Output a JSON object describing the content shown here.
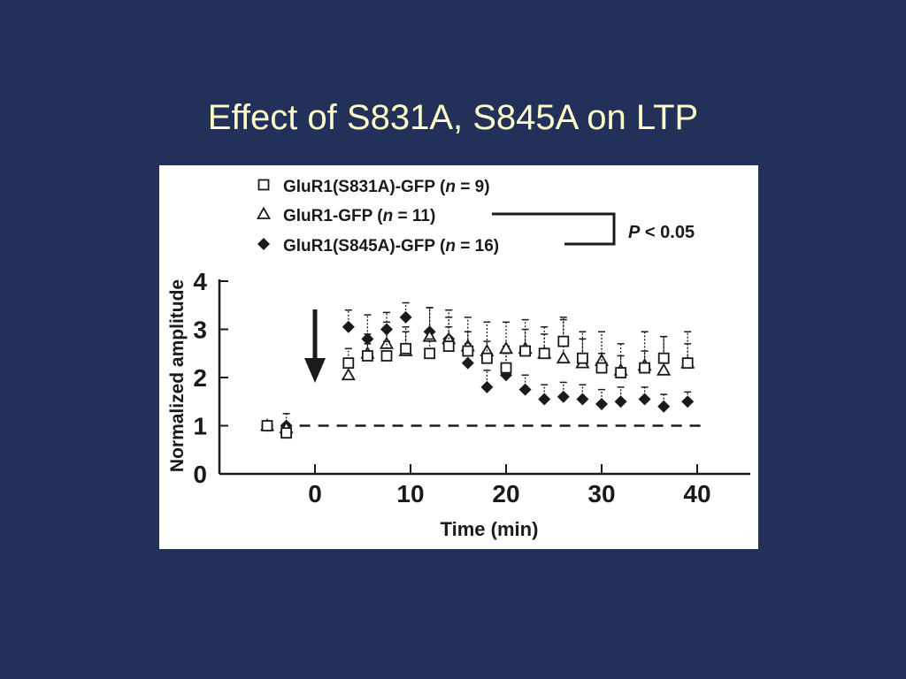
{
  "slide": {
    "title": "Effect of S831A, S845A on LTP",
    "background_color": "#22305a",
    "title_color": "#fefec8"
  },
  "chart_data": {
    "type": "scatter",
    "xlabel": "Time (min)",
    "ylabel": "Normalized amplitude",
    "xlim": [
      -10,
      45
    ],
    "ylim": [
      0,
      4
    ],
    "xticks": [
      0,
      10,
      20,
      30,
      40
    ],
    "yticks": [
      0,
      1,
      2,
      3,
      4
    ],
    "grid": false,
    "legend_position": "top",
    "baseline": {
      "y": 1,
      "style": "dashed"
    },
    "stimulus_marker": {
      "x": 0,
      "symbol": "down-arrow"
    },
    "significance": {
      "label_prefix": "P",
      "label_rest": " < 0.05",
      "between": [
        "GluR1-GFP",
        "GluR1(S845A)-GFP"
      ]
    },
    "series": [
      {
        "name": "GluR1(S831A)-GFP",
        "legend_main": "GluR1(S831A)-GFP (",
        "legend_n": "n",
        "legend_rest": " = 9)",
        "marker": "open-square",
        "x": [
          -5,
          -3,
          3.5,
          5.5,
          7.5,
          9.5,
          12,
          14,
          16,
          18,
          20,
          22,
          24,
          26,
          28,
          30,
          32,
          34.5,
          36.5,
          39
        ],
        "y": [
          1.0,
          0.85,
          2.3,
          2.45,
          2.45,
          2.6,
          2.5,
          2.65,
          2.55,
          2.4,
          2.2,
          2.55,
          2.5,
          2.75,
          2.4,
          2.2,
          2.1,
          2.2,
          2.4,
          2.3
        ],
        "err": [
          0.05,
          0.1,
          0.3,
          0.25,
          0.3,
          0.35,
          0.3,
          0.4,
          0.4,
          0.35,
          0.3,
          0.45,
          0.4,
          0.5,
          0.4,
          0.3,
          0.35,
          0.35,
          0.45,
          0.4
        ]
      },
      {
        "name": "GluR1-GFP",
        "legend_main": "GluR1-GFP (",
        "legend_n": "n",
        "legend_rest": " = 11)",
        "marker": "open-triangle",
        "x": [
          -5,
          -3,
          3.5,
          5.5,
          7.5,
          9.5,
          12,
          14,
          16,
          18,
          20,
          22,
          24,
          26,
          28,
          30,
          32,
          34.5,
          36.5,
          39
        ],
        "y": [
          1.0,
          0.95,
          2.05,
          2.5,
          2.7,
          2.55,
          2.85,
          2.8,
          2.65,
          2.55,
          2.6,
          2.6,
          2.5,
          2.4,
          2.3,
          2.35,
          2.15,
          2.25,
          2.15,
          2.3
        ],
        "err": [
          0.05,
          0.1,
          0.35,
          0.4,
          0.45,
          0.5,
          0.6,
          0.6,
          0.6,
          0.6,
          0.55,
          0.6,
          0.55,
          0.8,
          0.65,
          0.6,
          0.55,
          0.7,
          0.7,
          0.65
        ]
      },
      {
        "name": "GluR1(S845A)-GFP",
        "legend_main": "GluR1(S845A)-GFP (",
        "legend_n": "n",
        "legend_rest": " = 16)",
        "marker": "filled-diamond",
        "x": [
          -5,
          -3,
          3.5,
          5.5,
          7.5,
          9.5,
          12,
          14,
          16,
          18,
          20,
          22,
          24,
          26,
          28,
          30,
          32,
          34.5,
          36.5,
          39
        ],
        "y": [
          1.0,
          1.0,
          3.05,
          2.8,
          3.0,
          3.25,
          2.95,
          2.8,
          2.3,
          1.8,
          2.05,
          1.75,
          1.55,
          1.6,
          1.55,
          1.45,
          1.5,
          1.55,
          1.4,
          1.5
        ],
        "err": [
          0.05,
          0.25,
          0.35,
          0.5,
          0.35,
          0.3,
          0.5,
          0.45,
          0.4,
          0.35,
          0.6,
          0.3,
          0.3,
          0.3,
          0.3,
          0.3,
          0.3,
          0.25,
          0.25,
          0.2
        ]
      }
    ]
  }
}
